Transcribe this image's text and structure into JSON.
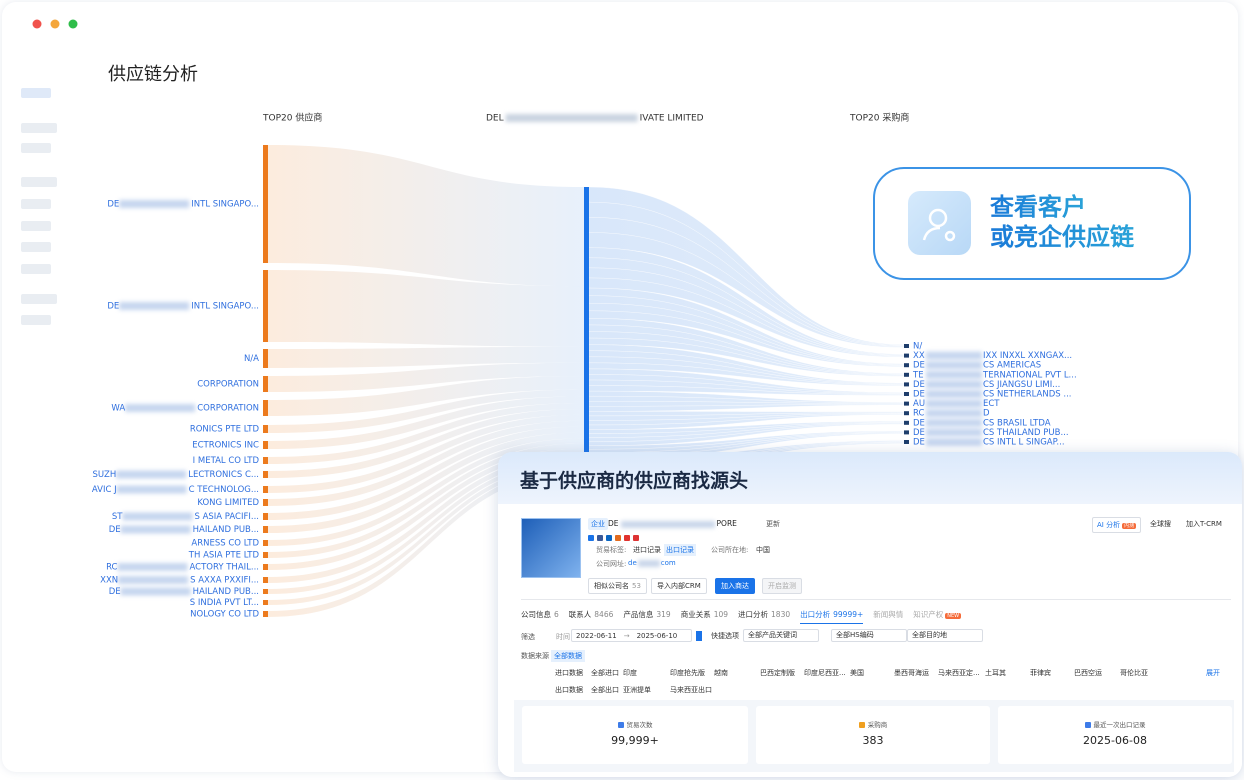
{
  "window": {
    "title": "供应链分析"
  },
  "sankey": {
    "left_header": "TOP20 供应商",
    "center_header": {
      "prefix": "DEL",
      "suffix": "IVATE LIMITED"
    },
    "right_header": "TOP20 采购商",
    "suppliers": [
      {
        "prefix": "DE",
        "suffix": "INTL SINGAPO..."
      },
      {
        "prefix": "DE",
        "suffix": "INTL SINGAPO..."
      },
      {
        "suffix": "N/A"
      },
      {
        "suffix": "CORPORATION"
      },
      {
        "prefix": "WA",
        "suffix": "CORPORATION"
      },
      {
        "suffix": "RONICS PTE LTD"
      },
      {
        "suffix": "ECTRONICS INC"
      },
      {
        "suffix": "I METAL CO LTD"
      },
      {
        "prefix": "SUZH",
        "suffix": "LECTRONICS C..."
      },
      {
        "prefix": "AVIC J",
        "suffix": "C TECHNOLOG..."
      },
      {
        "suffix": "KONG LIMITED"
      },
      {
        "prefix": "ST",
        "suffix": "S ASIA PACIFI..."
      },
      {
        "prefix": "DE",
        "suffix": "HAILAND PUB..."
      },
      {
        "suffix": "ARNESS CO LTD"
      },
      {
        "suffix": "TH ASIA PTE LTD"
      },
      {
        "prefix": "RC",
        "suffix": "ACTORY THAIL..."
      },
      {
        "prefix": "XXN",
        "suffix": "S AXXA PXXIFI..."
      },
      {
        "prefix": "DE",
        "suffix": "HAILAND PUB..."
      },
      {
        "suffix": "S INDIA PVT LT..."
      },
      {
        "suffix": "NOLOGY CO LTD"
      }
    ],
    "buyers": [
      {
        "prefix": "N/"
      },
      {
        "prefix": "XX",
        "suffix": "IXX INXXL XXNGAX..."
      },
      {
        "prefix": "DE",
        "suffix": "CS AMERICAS"
      },
      {
        "prefix": "TE",
        "suffix": "TERNATIONAL PVT L..."
      },
      {
        "prefix": "DE",
        "suffix": "CS JIANGSU LIMI..."
      },
      {
        "prefix": "DE",
        "suffix": "CS NETHERLANDS ..."
      },
      {
        "prefix": "AU",
        "suffix": "ECT"
      },
      {
        "prefix": "RC",
        "suffix": "D"
      },
      {
        "prefix": "DE",
        "suffix": "CS BRASIL LTDA"
      },
      {
        "prefix": "DE",
        "suffix": "CS THAILAND PUB..."
      },
      {
        "prefix": "DE",
        "suffix": "CS INTL L SINGAP..."
      }
    ]
  },
  "callout": {
    "lines": [
      "查看客户",
      "或竞企供应链"
    ]
  },
  "card": {
    "title": "基于供应商的供应商找源头",
    "company": {
      "type_tag": "企业",
      "name_prefix": "DE",
      "name_suffix": "PORE",
      "update": "更新",
      "trade_tags_label": "贸易标签:",
      "tags": [
        "进口记录",
        "出口记录"
      ],
      "location_label": "公司所在地:",
      "location": "中国",
      "website_label": "公司网址:",
      "website_prefix": "de",
      "website_suffix": "com"
    },
    "actions": {
      "ai": "AI 分析",
      "ai_badge": "内测",
      "global": "全球搜",
      "crm": "加入T-CRM"
    },
    "similar": {
      "label": "相似公司名",
      "count": 53
    },
    "buttons": [
      "导入内部CRM",
      "加入商达",
      "开启监测"
    ],
    "tabs": [
      {
        "label": "公司信息",
        "count": 6
      },
      {
        "label": "联系人",
        "count": 8466
      },
      {
        "label": "产品信息",
        "count": 319
      },
      {
        "label": "商业关系",
        "count": 109
      },
      {
        "label": "进口分析",
        "count": 1830
      },
      {
        "label": "出口分析",
        "count": "99999+"
      },
      {
        "label": "新闻舆情"
      },
      {
        "label": "知识产权",
        "badge": "NEW"
      }
    ],
    "filters": {
      "label": "筛选",
      "time_label": "时间",
      "start": "2022-06-11",
      "arrow": "→",
      "end": "2025-06-10",
      "quick": "快捷选项",
      "selects": [
        "全部产品关键词",
        "全部HS编码",
        "全部目的地"
      ]
    },
    "source": {
      "label": "数据来源",
      "value": "全部数据"
    },
    "import_row": {
      "label": "进口数据",
      "items": [
        "全部进口",
        "印度",
        "印度抢先版",
        "越南",
        "巴西定制版",
        "印度尼西亚...",
        "美国",
        "墨西哥海运",
        "马来西亚定...",
        "土耳其",
        "菲律宾",
        "巴西空运",
        "哥伦比亚"
      ]
    },
    "export_row": {
      "label": "出口数据",
      "items": [
        "全部出口",
        "亚洲提单",
        "马来西亚出口"
      ]
    },
    "expand": "展开",
    "stats": [
      {
        "label": "贸易次数",
        "value": "99,999+"
      },
      {
        "label": "采购商",
        "value": 383
      },
      {
        "label": "最近一次出口记录",
        "value": "2025-06-08"
      }
    ]
  }
}
